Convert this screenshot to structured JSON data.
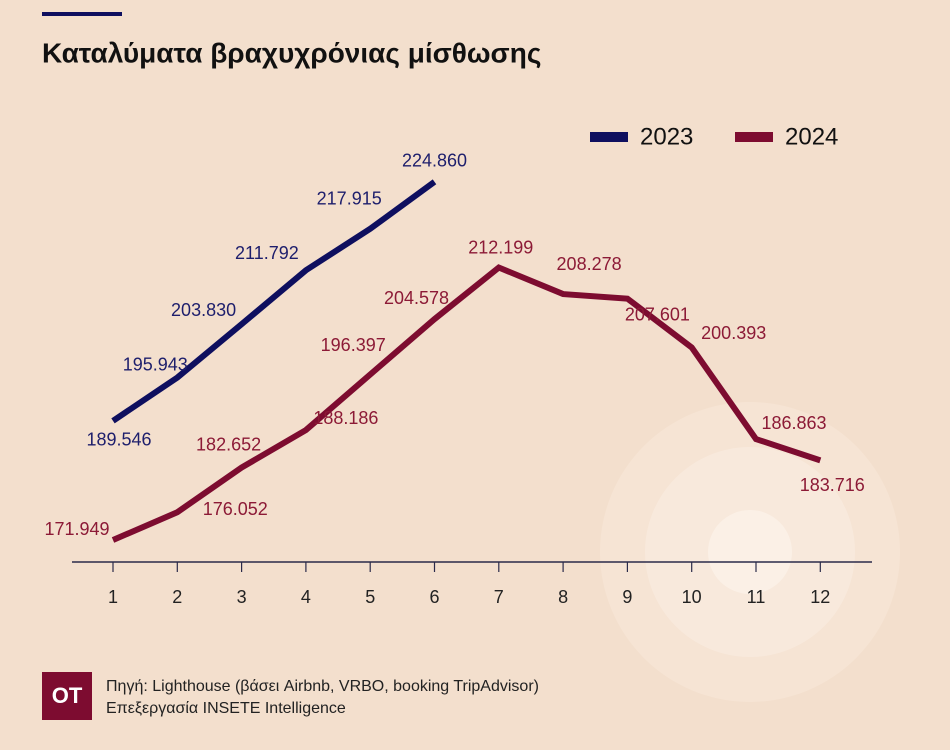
{
  "chart_data": {
    "type": "line",
    "title": "Καταλύματα βραχυχρόνιας μίσθωσης",
    "categories": [
      "1",
      "2",
      "3",
      "4",
      "5",
      "6",
      "7",
      "8",
      "9",
      "10",
      "11",
      "12"
    ],
    "series": [
      {
        "name": "2023",
        "color": "#0e0f5f",
        "label_color": "#1d1e6c",
        "values": [
          189546,
          195943,
          203830,
          211792,
          217915,
          224860,
          null,
          null,
          null,
          null,
          null,
          null
        ],
        "value_labels": [
          "189.546",
          "195.943",
          "203.830",
          "211.792",
          "217.915",
          "224.860",
          null,
          null,
          null,
          null,
          null,
          null
        ]
      },
      {
        "name": "2024",
        "color": "#7d0c30",
        "label_color": "#8c1a36",
        "values": [
          171949,
          176052,
          182652,
          188186,
          196397,
          204578,
          212199,
          208278,
          207601,
          200393,
          186863,
          183716
        ],
        "value_labels": [
          "171.949",
          "176.052",
          "182.652",
          "188.186",
          "196.397",
          "204.578",
          "212.199",
          "208.278",
          "207.601",
          "200.393",
          "186.863",
          "183.716"
        ]
      }
    ],
    "ylim": [
      168700,
      230000
    ],
    "legend": "top-right"
  },
  "source": {
    "logo": "OT",
    "line1": "Πηγή: Lighthouse (βάσει Airbnb, VRBO, booking TripAdvisor)",
    "line2": "Επεξεργασία INSETE Intelligence"
  }
}
